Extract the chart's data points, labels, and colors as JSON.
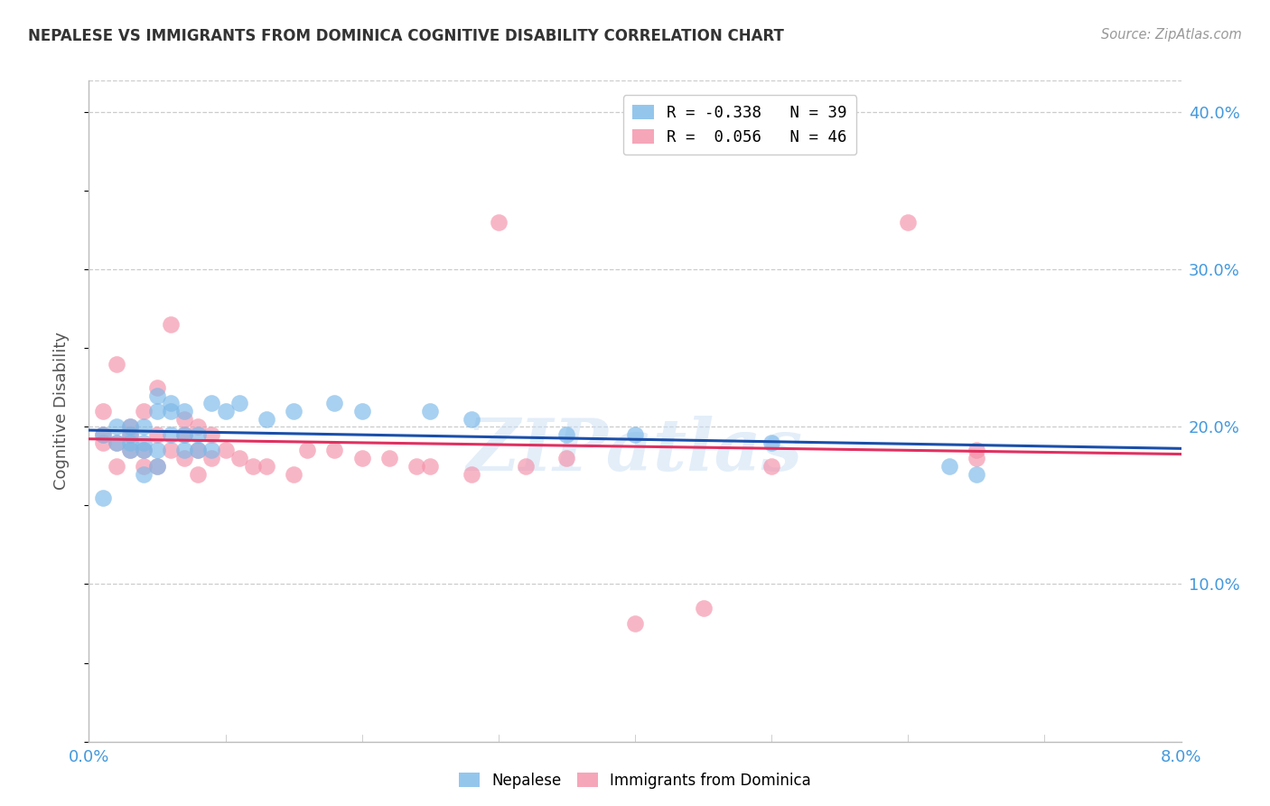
{
  "title": "NEPALESE VS IMMIGRANTS FROM DOMINICA COGNITIVE DISABILITY CORRELATION CHART",
  "source": "Source: ZipAtlas.com",
  "ylabel": "Cognitive Disability",
  "xlim": [
    0.0,
    0.08
  ],
  "ylim": [
    0.0,
    0.42
  ],
  "yticks": [
    0.0,
    0.1,
    0.2,
    0.3,
    0.4
  ],
  "ytick_labels": [
    "",
    "10.0%",
    "20.0%",
    "30.0%",
    "40.0%"
  ],
  "watermark": "ZIPatlas",
  "legend_line1": "R = -0.338   N = 39",
  "legend_line2": "R =  0.056   N = 46",
  "nepalese_color": "#7ab8e8",
  "dominica_color": "#f490a8",
  "nepalese_line_color": "#1a4faa",
  "dominica_line_color": "#e03060",
  "axis_color": "#4499dd",
  "grid_color": "#cccccc",
  "nepalese_x": [
    0.001,
    0.001,
    0.002,
    0.002,
    0.003,
    0.003,
    0.003,
    0.003,
    0.004,
    0.004,
    0.004,
    0.004,
    0.005,
    0.005,
    0.005,
    0.005,
    0.006,
    0.006,
    0.006,
    0.007,
    0.007,
    0.007,
    0.008,
    0.008,
    0.009,
    0.009,
    0.01,
    0.011,
    0.013,
    0.015,
    0.018,
    0.02,
    0.025,
    0.028,
    0.035,
    0.04,
    0.05,
    0.063,
    0.065
  ],
  "nepalese_y": [
    0.195,
    0.155,
    0.19,
    0.2,
    0.185,
    0.19,
    0.195,
    0.2,
    0.17,
    0.185,
    0.19,
    0.2,
    0.175,
    0.185,
    0.21,
    0.22,
    0.195,
    0.21,
    0.215,
    0.185,
    0.195,
    0.21,
    0.185,
    0.195,
    0.185,
    0.215,
    0.21,
    0.215,
    0.205,
    0.21,
    0.215,
    0.21,
    0.21,
    0.205,
    0.195,
    0.195,
    0.19,
    0.175,
    0.17
  ],
  "dominica_x": [
    0.001,
    0.001,
    0.001,
    0.002,
    0.002,
    0.002,
    0.003,
    0.003,
    0.003,
    0.004,
    0.004,
    0.004,
    0.005,
    0.005,
    0.005,
    0.006,
    0.006,
    0.007,
    0.007,
    0.007,
    0.008,
    0.008,
    0.008,
    0.009,
    0.009,
    0.01,
    0.011,
    0.012,
    0.013,
    0.015,
    0.016,
    0.018,
    0.02,
    0.022,
    0.024,
    0.025,
    0.028,
    0.03,
    0.032,
    0.035,
    0.04,
    0.045,
    0.05,
    0.06,
    0.065,
    0.065
  ],
  "dominica_y": [
    0.19,
    0.195,
    0.21,
    0.175,
    0.19,
    0.24,
    0.185,
    0.195,
    0.2,
    0.175,
    0.185,
    0.21,
    0.175,
    0.195,
    0.225,
    0.185,
    0.265,
    0.18,
    0.195,
    0.205,
    0.17,
    0.185,
    0.2,
    0.18,
    0.195,
    0.185,
    0.18,
    0.175,
    0.175,
    0.17,
    0.185,
    0.185,
    0.18,
    0.18,
    0.175,
    0.175,
    0.17,
    0.33,
    0.175,
    0.18,
    0.075,
    0.085,
    0.175,
    0.33,
    0.185,
    0.18
  ]
}
